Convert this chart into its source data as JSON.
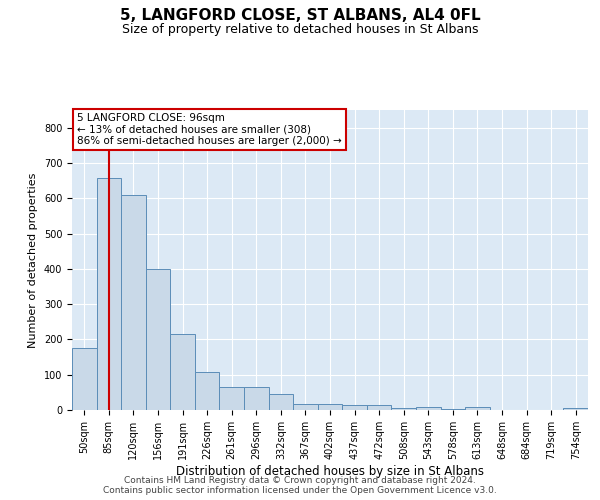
{
  "title": "5, LANGFORD CLOSE, ST ALBANS, AL4 0FL",
  "subtitle": "Size of property relative to detached houses in St Albans",
  "xlabel": "Distribution of detached houses by size in St Albans",
  "ylabel": "Number of detached properties",
  "categories": [
    "50sqm",
    "85sqm",
    "120sqm",
    "156sqm",
    "191sqm",
    "226sqm",
    "261sqm",
    "296sqm",
    "332sqm",
    "367sqm",
    "402sqm",
    "437sqm",
    "472sqm",
    "508sqm",
    "543sqm",
    "578sqm",
    "613sqm",
    "648sqm",
    "684sqm",
    "719sqm",
    "754sqm"
  ],
  "values": [
    175,
    658,
    608,
    400,
    215,
    107,
    64,
    64,
    44,
    18,
    18,
    15,
    13,
    6,
    8,
    2,
    8,
    0,
    0,
    0,
    7
  ],
  "bar_color": "#c9d9e8",
  "bar_edge_color": "#5b8db8",
  "vline_x_index": 1,
  "vline_color": "#cc0000",
  "annotation_line1": "5 LANGFORD CLOSE: 96sqm",
  "annotation_line2": "← 13% of detached houses are smaller (308)",
  "annotation_line3": "86% of semi-detached houses are larger (2,000) →",
  "annotation_box_color": "#ffffff",
  "annotation_border_color": "#cc0000",
  "ylim": [
    0,
    850
  ],
  "yticks": [
    0,
    100,
    200,
    300,
    400,
    500,
    600,
    700,
    800
  ],
  "plot_bg_color": "#dce9f5",
  "footer_line1": "Contains HM Land Registry data © Crown copyright and database right 2024.",
  "footer_line2": "Contains public sector information licensed under the Open Government Licence v3.0.",
  "title_fontsize": 11,
  "subtitle_fontsize": 9,
  "xlabel_fontsize": 8.5,
  "ylabel_fontsize": 8,
  "tick_fontsize": 7,
  "annotation_fontsize": 7.5,
  "footer_fontsize": 6.5
}
